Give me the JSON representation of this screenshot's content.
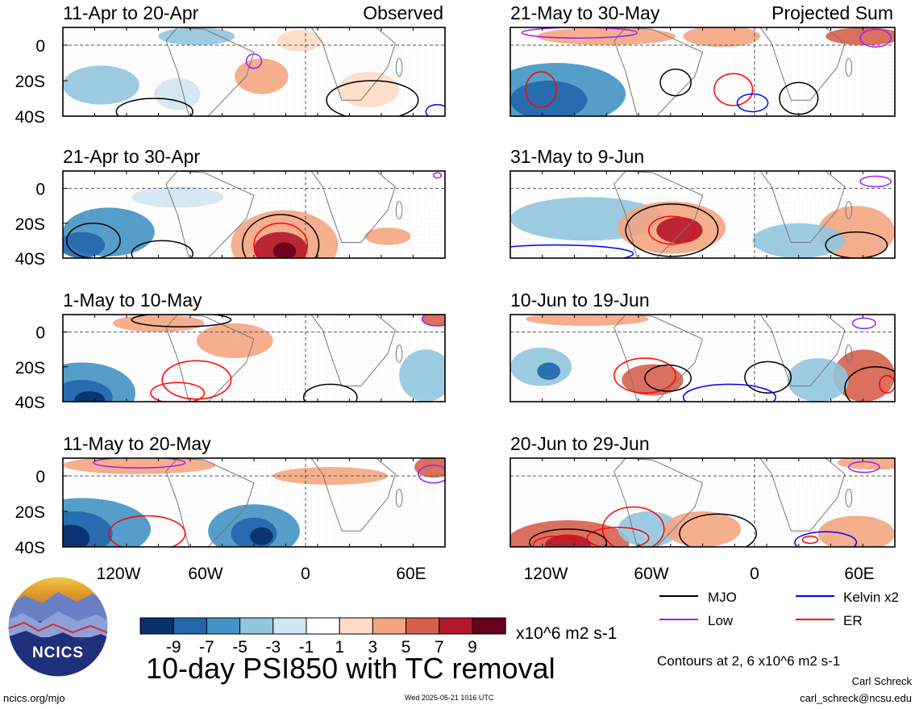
{
  "figure_title": "10-day PSI850 with TC removal",
  "panel_labels": {
    "observed": "Observed",
    "projected": "Projected Sum"
  },
  "panels": [
    {
      "period": "11-Apr to 20-Apr"
    },
    {
      "period": "21-Apr to 30-Apr"
    },
    {
      "period": "1-May to 10-May"
    },
    {
      "period": "11-May to 20-May"
    },
    {
      "period": "21-May to 30-May"
    },
    {
      "period": "31-May to 9-Jun"
    },
    {
      "period": "10-Jun to 19-Jun"
    },
    {
      "period": "20-Jun to 29-Jun"
    }
  ],
  "lat_ticks": [
    "0",
    "20S",
    "40S"
  ],
  "lon_ticks": [
    "120W",
    "60W",
    "0",
    "60E"
  ],
  "colorbar": {
    "unit": "x10^6 m2 s-1",
    "tick_labels": [
      "-9",
      "-7",
      "-5",
      "-3",
      "-1",
      "1",
      "3",
      "5",
      "7",
      "9"
    ],
    "colors": [
      "#08306b",
      "#2166ac",
      "#4393c3",
      "#92c5de",
      "#d1e5f0",
      "#ffffff",
      "#fddbc7",
      "#f4a582",
      "#d6604d",
      "#b2182b",
      "#67001f"
    ]
  },
  "legend": [
    {
      "label": "MJO",
      "color": "#000000"
    },
    {
      "label": "Kelvin x2",
      "color": "#0000ff"
    },
    {
      "label": "Low",
      "color": "#a020f0"
    },
    {
      "label": "ER",
      "color": "#ff0000"
    }
  ],
  "contour_note": "Contours at 2, 6 x10^6 m2 s-1",
  "author": "Carl Schreck",
  "email": "carl_schreck@ncsu.edu",
  "site": "ncics.org/mjo",
  "timestamp": "Wed 2025-05-21 1016 UTC",
  "logo_text": "NCICS"
}
